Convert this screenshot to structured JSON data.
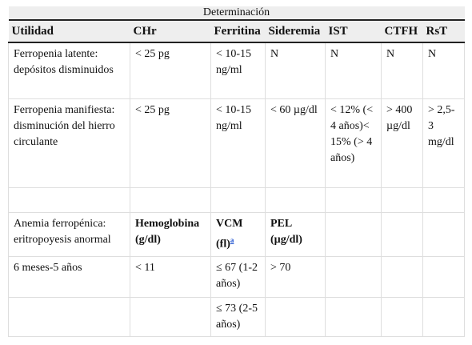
{
  "caption": "Determinación",
  "headers": [
    "Utilidad",
    "CHr",
    "Ferritina",
    "Sideremia",
    "IST",
    "CTFH",
    "RsT"
  ],
  "rows": [
    [
      "Ferropenia latente: depósitos disminuidos",
      "< 25 pg",
      "< 10-15 ng/ml",
      "N",
      "N",
      "N",
      "N"
    ],
    [
      "Ferropenia manifiesta: disminución del hierro circulante",
      "< 25 pg",
      "< 10-15 ng/ml",
      "< 60 µg/dl",
      "< 12% (< 4 años)< 15% (> 4 años)",
      "> 400 µg/dl",
      "> 2,5-3 mg/dl"
    ],
    [
      "",
      "",
      "",
      "",
      "",
      "",
      ""
    ],
    [
      "Anemia ferropénica: eritropoyesis anormal",
      "Hemoglobina (g/dl)",
      "VCM (fl)",
      "PEL (µg/dl)",
      "",
      "",
      ""
    ],
    [
      "6 meses-5 años",
      "< 11",
      "≤ 67 (1-2 años)",
      "> 70",
      "",
      "",
      ""
    ],
    [
      "",
      "",
      "≤ 73 (2-5 años)",
      "",
      "",
      "",
      ""
    ]
  ],
  "footnote_mark": "a"
}
